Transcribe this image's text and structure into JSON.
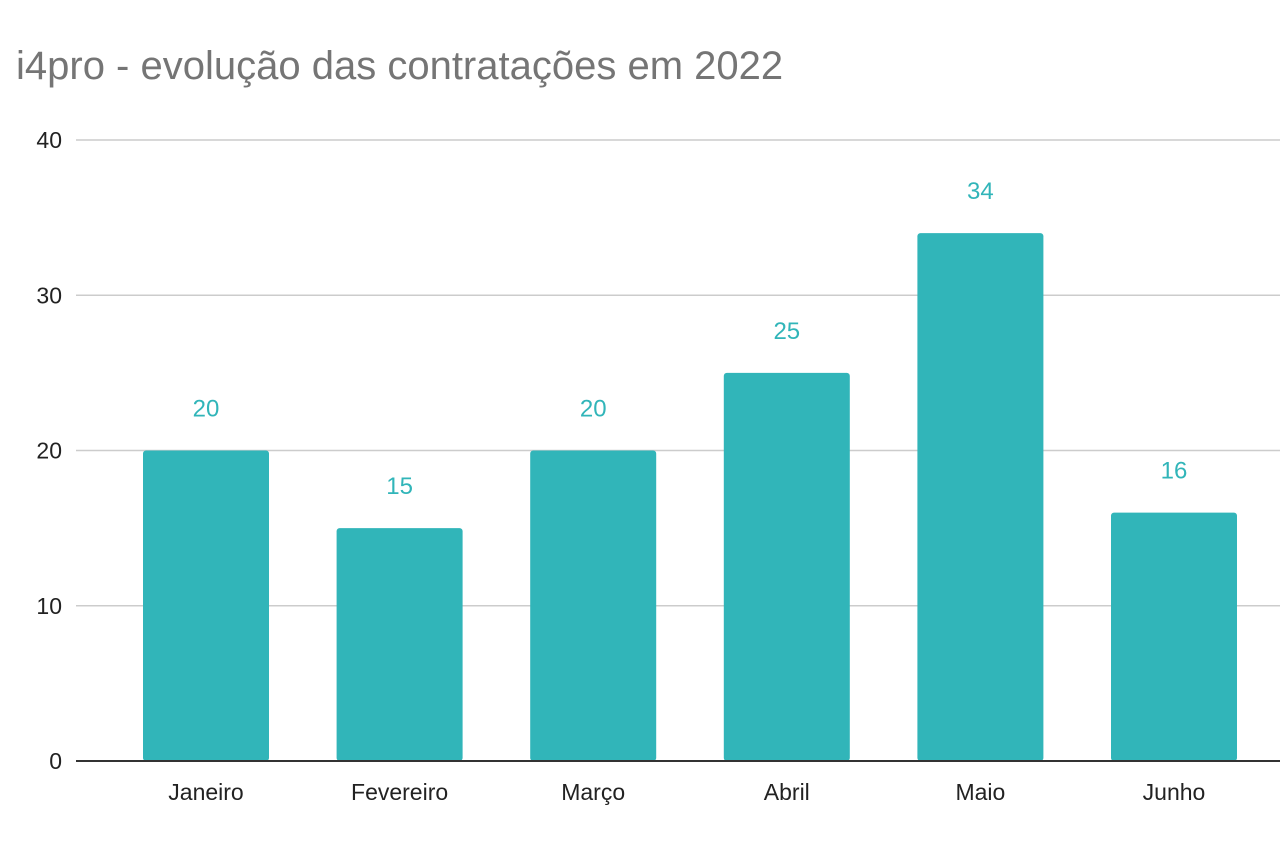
{
  "chart_data": {
    "type": "bar",
    "title": "i4pro - evolução das contratações em 2022",
    "xlabel": "",
    "ylabel": "",
    "categories": [
      "Janeiro",
      "Fevereiro",
      "Março",
      "Abril",
      "Maio",
      "Junho"
    ],
    "values": [
      20,
      15,
      20,
      25,
      34,
      16
    ],
    "ylim": [
      0,
      40
    ],
    "yticks": [
      "0",
      "10",
      "20",
      "30",
      "40"
    ],
    "data_labels": [
      "20",
      "15",
      "20",
      "25",
      "34",
      "16"
    ],
    "grid": true,
    "legend": "none",
    "colors": {
      "bar": "#31b5b9",
      "data_label": "#31b5b9",
      "gridline": "#cccccc",
      "axis": "#333333",
      "title": "#757575"
    }
  }
}
